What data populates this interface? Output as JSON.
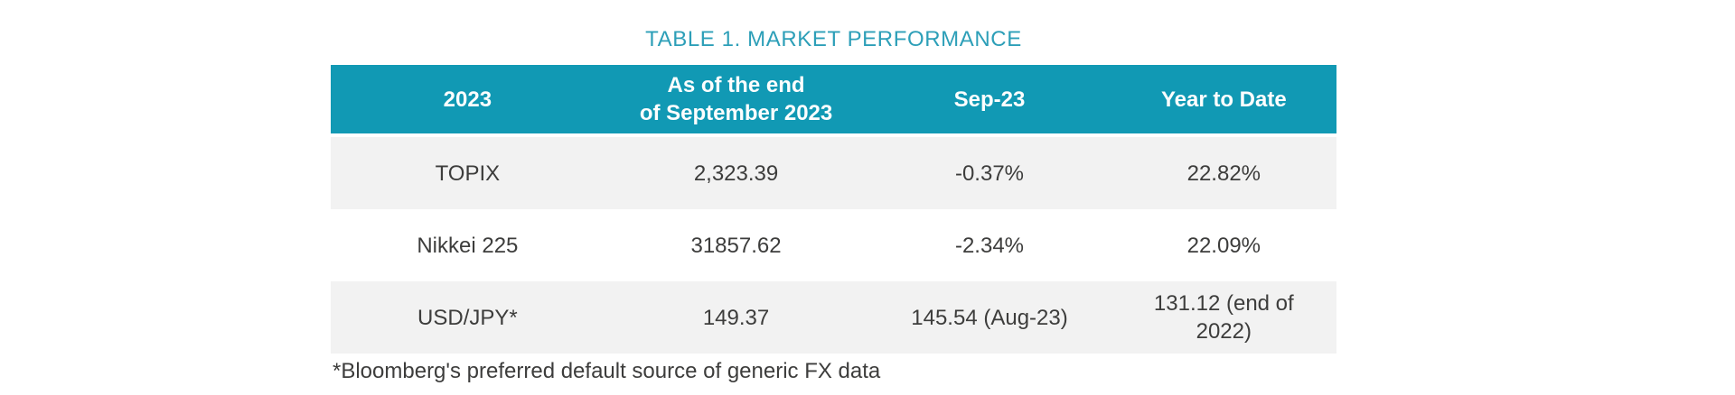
{
  "title": "TABLE 1. MARKET PERFORMANCE",
  "table": {
    "headers": [
      {
        "label": "2023"
      },
      {
        "label": "As of the end\nof September 2023"
      },
      {
        "label": "Sep-23"
      },
      {
        "label": "Year to Date"
      }
    ],
    "rows": [
      {
        "cells": [
          "TOPIX",
          "2,323.39",
          "-0.37%",
          "22.82%"
        ]
      },
      {
        "cells": [
          "Nikkei 225",
          "31857.62",
          "-2.34%",
          "22.09%"
        ]
      },
      {
        "cells": [
          "USD/JPY*",
          "149.37",
          "145.54 (Aug-23)",
          "131.12 (end of 2022)"
        ]
      }
    ]
  },
  "footnote": "*Bloomberg's preferred default source of generic FX data",
  "colors": {
    "header_bg": "#1199B4",
    "title_text": "#2D9FB8",
    "alt_row_bg": "#F2F2F2",
    "body_text": "#3D3D3C",
    "header_text": "#FFFFFF"
  }
}
